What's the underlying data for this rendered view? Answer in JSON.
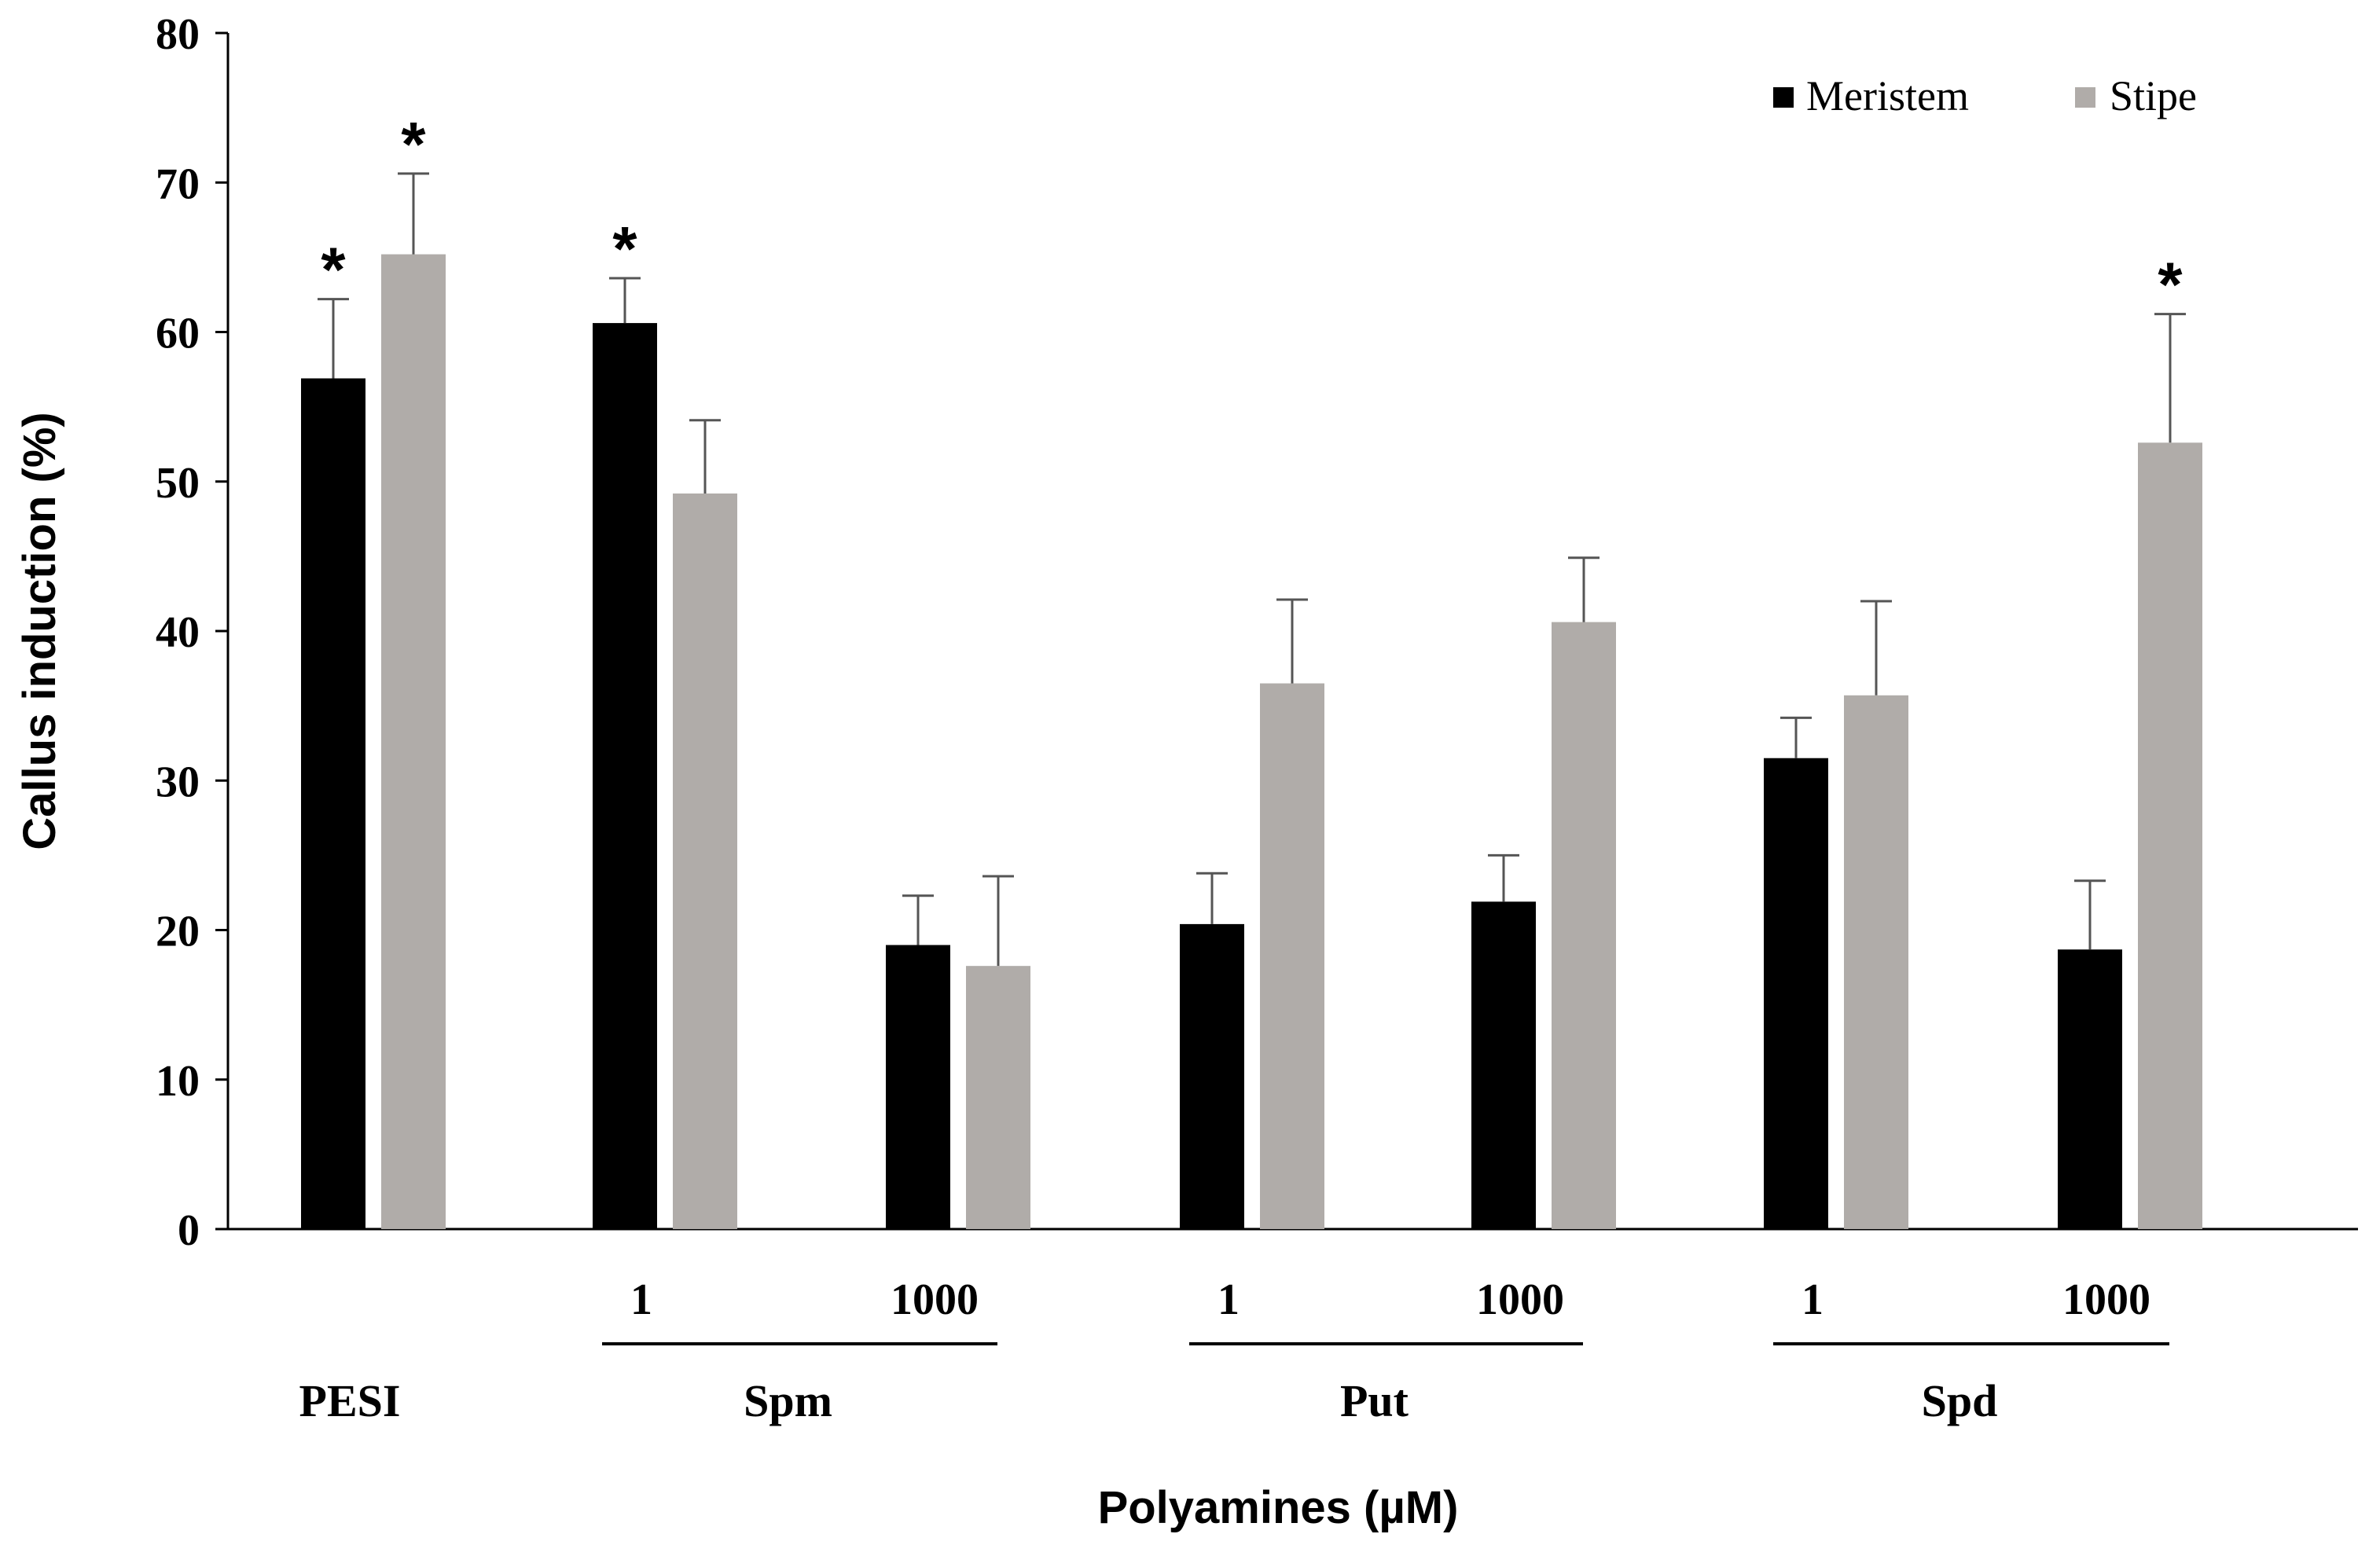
{
  "chart_data": {
    "type": "bar",
    "title": "",
    "xlabel": "Polyamines (µM)",
    "ylabel": "Callus induction (%)",
    "ylim": [
      0,
      80
    ],
    "yticks": [
      "0",
      "10",
      "20",
      "30",
      "40",
      "50",
      "60",
      "70",
      "80"
    ],
    "categories": [
      "PESI",
      "Spm 1",
      "Spm 1000",
      "Put 1",
      "Put 1000",
      "Spd 1",
      "Spd 1000"
    ],
    "concentration_labels": [
      "",
      "1",
      "1000",
      "1",
      "1000",
      "1",
      "1000"
    ],
    "groups": [
      {
        "label": "PESI"
      },
      {
        "label": "Spm"
      },
      {
        "label": "Put"
      },
      {
        "label": "Spd"
      }
    ],
    "legend": {
      "position": "top-right",
      "entries": [
        "Meristem",
        "Stipe"
      ]
    },
    "colors": {
      "Meristem": "#000000",
      "Stipe": "#b0aca9"
    },
    "significance_marker": "*",
    "series": [
      {
        "name": "Meristem",
        "values": [
          56.9,
          60.6,
          19.0,
          20.4,
          21.9,
          31.5,
          18.7
        ],
        "errors": [
          5.3,
          3.0,
          3.3,
          3.4,
          3.1,
          2.7,
          4.6
        ],
        "significant": [
          true,
          true,
          false,
          false,
          false,
          false,
          false
        ]
      },
      {
        "name": "Stipe",
        "values": [
          65.2,
          49.2,
          17.6,
          36.5,
          40.6,
          35.7,
          52.6
        ],
        "errors": [
          5.4,
          4.9,
          6.0,
          5.6,
          4.3,
          6.3,
          8.6
        ],
        "significant": [
          true,
          false,
          false,
          false,
          false,
          false,
          true
        ]
      }
    ]
  }
}
